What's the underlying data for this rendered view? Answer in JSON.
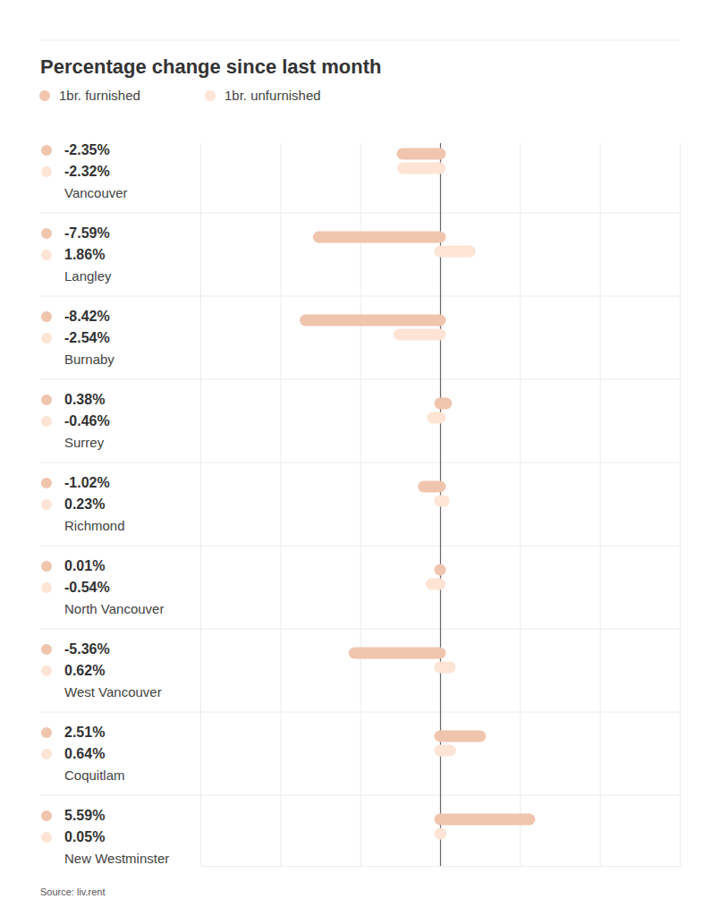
{
  "chart_data": {
    "type": "bar",
    "orientation": "horizontal",
    "title": "Percentage change since last month",
    "source": "Source: liv.rent",
    "categories": [
      "Vancouver",
      "Langley",
      "Burnaby",
      "Surrey",
      "Richmond",
      "North Vancouver",
      "West Vancouver",
      "Coquitlam",
      "New Westminster"
    ],
    "series": [
      {
        "name": "1br. furnished",
        "color": "#f0c5ae",
        "values": [
          -2.35,
          -7.59,
          -8.42,
          0.38,
          -1.02,
          0.01,
          -5.36,
          2.51,
          5.59
        ],
        "value_labels": [
          "-2.35%",
          "-7.59%",
          "-8.42%",
          "0.38%",
          "-1.02%",
          "0.01%",
          "-5.36%",
          "2.51%",
          "5.59%"
        ]
      },
      {
        "name": "1br. unfurnished",
        "color": "#fde4d5",
        "values": [
          -2.32,
          1.86,
          -2.54,
          -0.46,
          0.23,
          -0.54,
          0.62,
          0.64,
          0.05
        ],
        "value_labels": [
          "-2.32%",
          "1.86%",
          "-2.54%",
          "-0.46%",
          "0.23%",
          "-0.54%",
          "0.62%",
          "0.64%",
          "0.05%"
        ]
      }
    ],
    "xlim": [
      -15,
      15
    ],
    "xticks": [
      -15,
      -10,
      -5,
      0,
      5,
      10,
      15
    ],
    "grid": true,
    "tick_labels": false,
    "data_labels": true,
    "legend": "top-left"
  }
}
